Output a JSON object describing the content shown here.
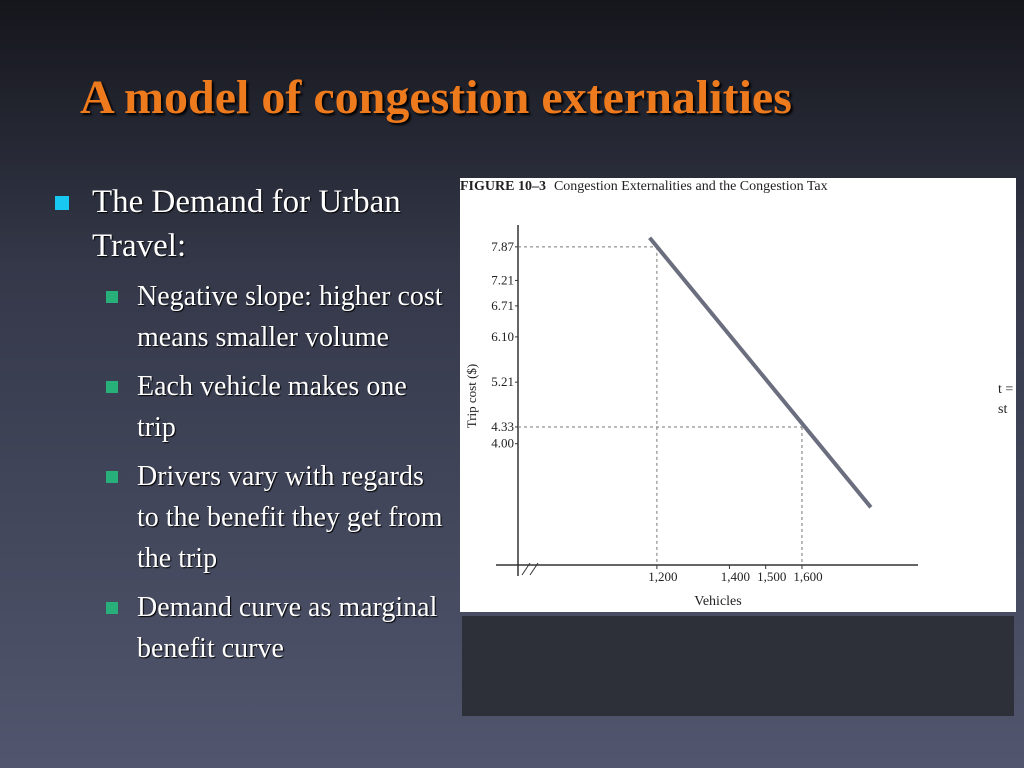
{
  "slide": {
    "title": "A model of congestion externalities",
    "bullets": [
      {
        "text": "The Demand for Urban Travel:",
        "sub": [
          "Negative slope: higher cost means smaller volume",
          "Each vehicle makes one trip",
          "Drivers vary with regards to the benefit they get from the trip",
          "Demand curve as marginal benefit curve"
        ]
      }
    ],
    "cropped_text": [
      "t =",
      "st"
    ]
  },
  "chart_data": {
    "type": "line",
    "figure_label": "FIGURE 10–3",
    "title": "Congestion Externalities and the Congestion Tax",
    "x_label": "Vehicles",
    "y_label": "Trip cost ($)",
    "x": [
      1180,
      1790
    ],
    "series": [
      {
        "color": "#6b6e7e",
        "values": [
          8.05,
          2.75
        ]
      }
    ],
    "guides": [
      {
        "x": 1200,
        "y": 7.87
      },
      {
        "x": 1600,
        "y": 4.33
      }
    ],
    "xlim": [
      817,
      1920
    ],
    "ylim": [
      1.616,
      8.3
    ],
    "xticks": [
      {
        "value": 1200,
        "label": "1,200"
      },
      {
        "value": 1400,
        "label": "1,400"
      },
      {
        "value": 1500,
        "label": "1,500"
      },
      {
        "value": 1600,
        "label": "1,600"
      }
    ],
    "yticks": [
      7.87,
      7.21,
      6.71,
      {
        "value": 6.1,
        "label": "6.10"
      },
      5.21,
      4.33,
      {
        "value": 4,
        "label": "4.00"
      }
    ]
  }
}
